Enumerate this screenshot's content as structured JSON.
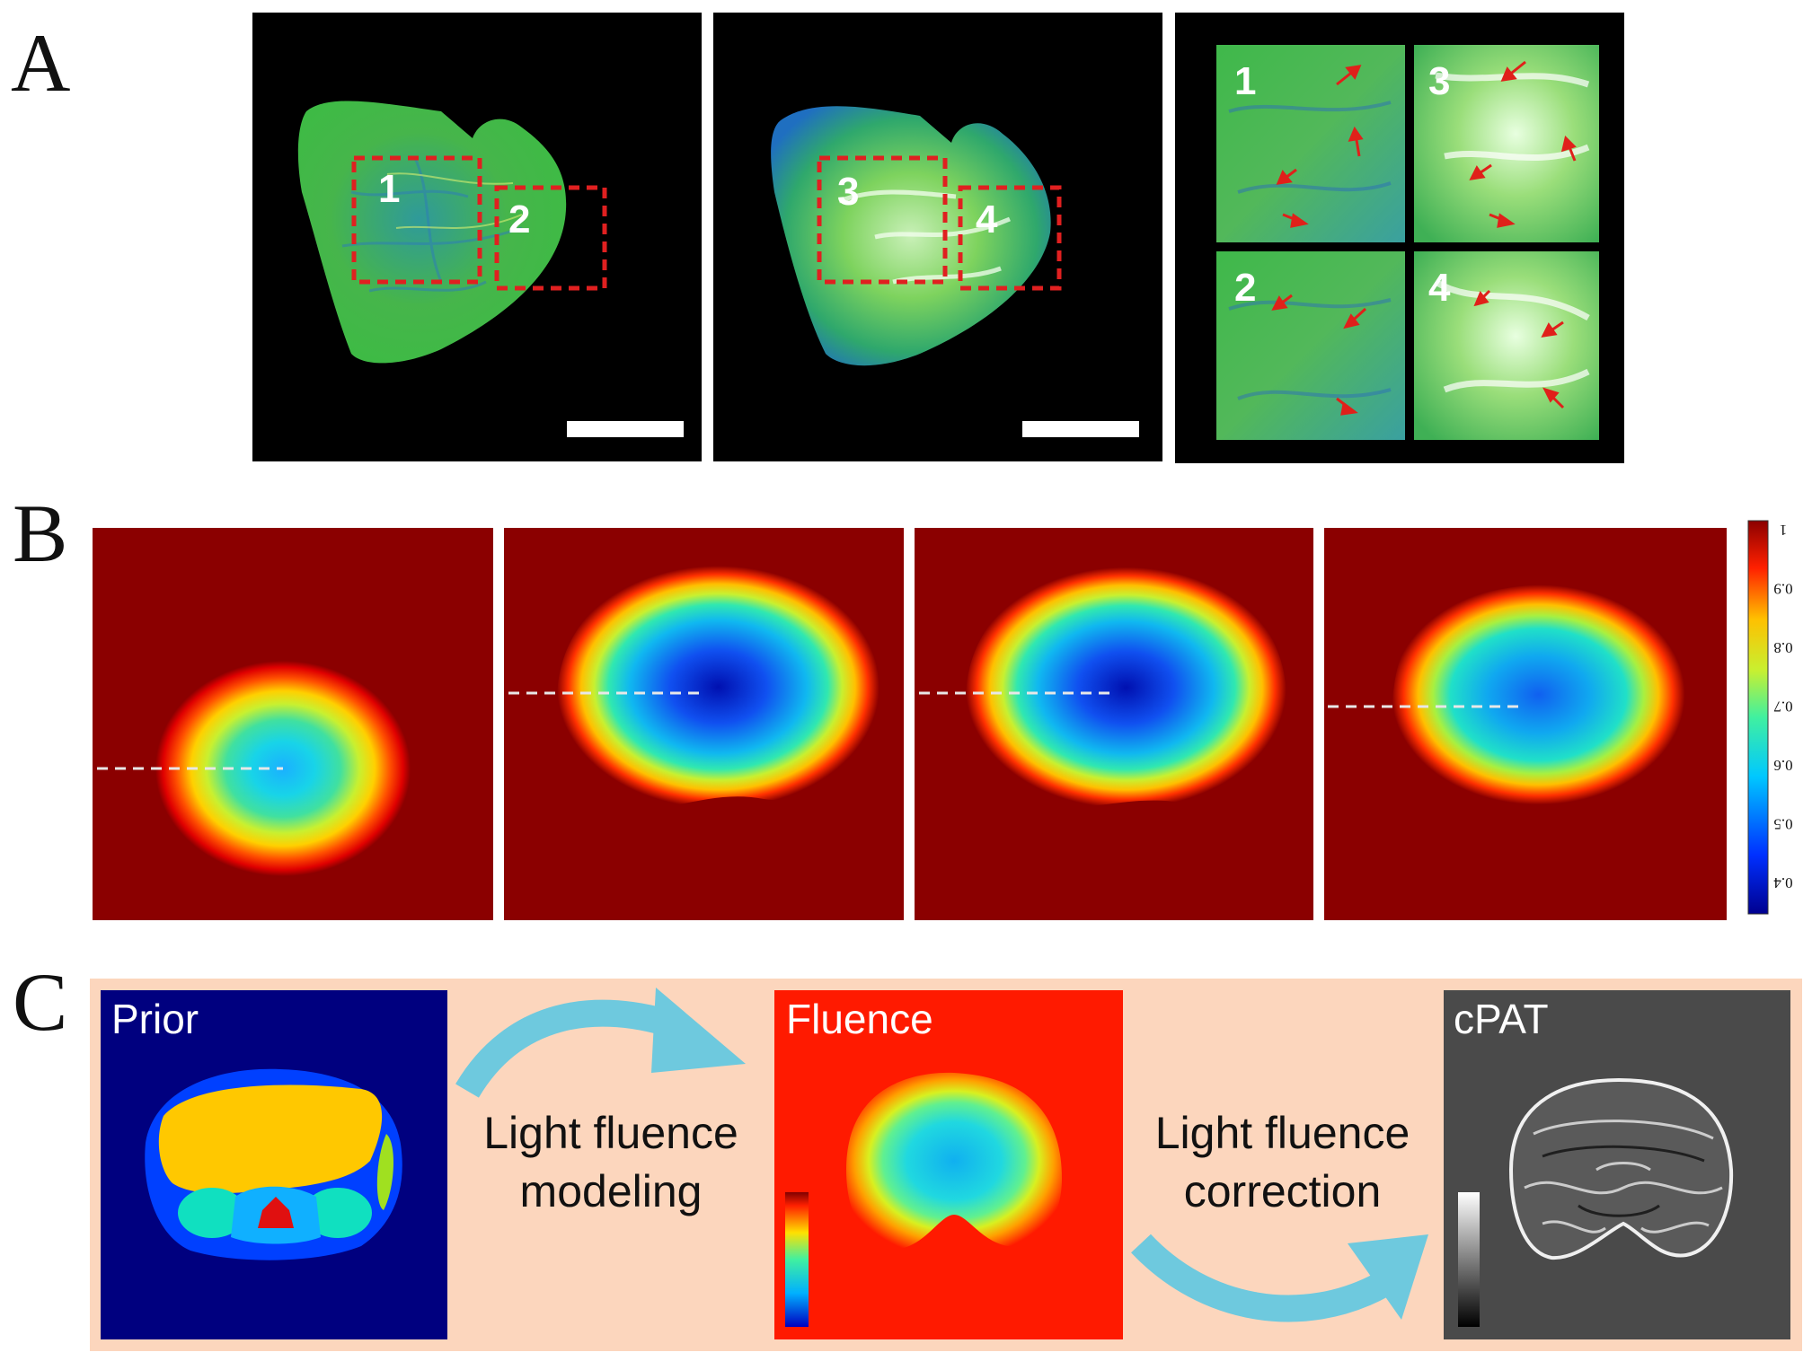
{
  "panels": {
    "a": {
      "letter": "A",
      "roi_labels": [
        "1",
        "2",
        "3",
        "4"
      ],
      "zoom_labels": [
        "1",
        "3",
        "2",
        "4"
      ]
    },
    "b": {
      "letter": "B",
      "colorbar_ticks": [
        "1",
        "0.9",
        "0.8",
        "0.7",
        "0.6",
        "0.5",
        "0.4"
      ]
    },
    "c": {
      "letter": "C",
      "prior_title": "Prior",
      "fluence_title": "Fluence",
      "cpat_title": "cPAT",
      "arrow1_line1": "Light fluence",
      "arrow1_line2": "modeling",
      "arrow2_line1": "Light fluence",
      "arrow2_line2": "correction"
    }
  },
  "colors": {
    "tissue_green": "#3fb84a",
    "roi_dash": "#e02020",
    "arrow_red": "#e0201a",
    "background_dark_red": "#8b0000",
    "prior_bg": "#00007f",
    "fluence_bg": "#ff1a00",
    "cpat_bg": "#4a4a4a",
    "panel_c_bg": "#fcd6bd",
    "flow_arrow": "#6ec9de"
  }
}
